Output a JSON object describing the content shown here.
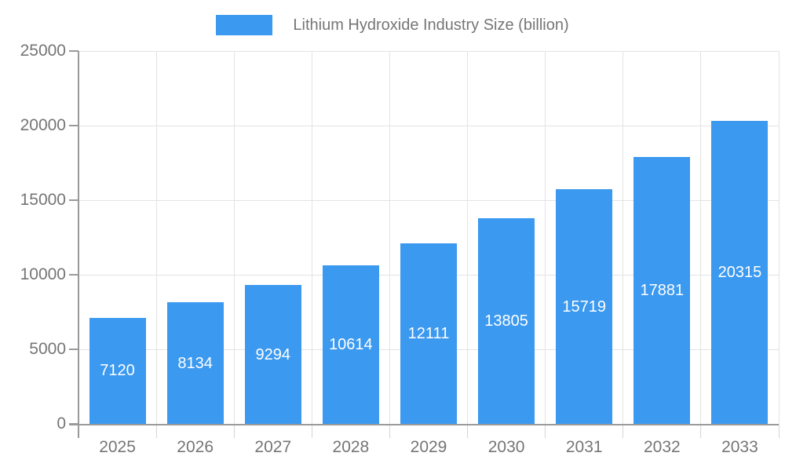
{
  "legend": {
    "label": "Lithium Hydroxide Industry Size (billion)"
  },
  "chart_data": {
    "type": "bar",
    "title": "Lithium Hydroxide Industry Size (billion)",
    "categories": [
      "2025",
      "2026",
      "2027",
      "2028",
      "2029",
      "2030",
      "2031",
      "2032",
      "2033"
    ],
    "values": [
      7120,
      8134,
      9294,
      10614,
      12111,
      13805,
      15719,
      17881,
      20315
    ],
    "xlabel": "",
    "ylabel": "",
    "ylim": [
      0,
      25000
    ],
    "ytick_interval": 5000,
    "ytick_labels": [
      "0",
      "5000",
      "10000",
      "15000",
      "20000",
      "25000"
    ],
    "legend_position": "top-center",
    "grid": true,
    "bar_labels_position": "centered-inside",
    "colors": {
      "bar": "#3b99f0",
      "bar_value_text": "#ffffff",
      "axis_text": "#757575",
      "axis_line": "#9a9a9a",
      "gridline": "#e3e3e3",
      "tick": "#d5d5d5",
      "background": "#ffffff"
    }
  }
}
